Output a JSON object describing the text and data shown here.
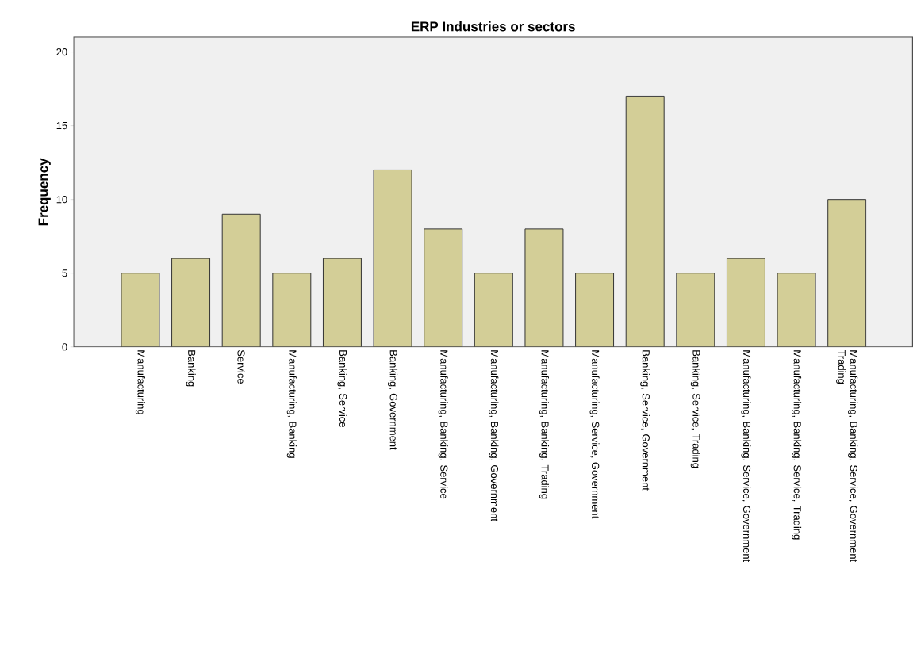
{
  "chart_data": {
    "type": "bar",
    "title": "ERP Industries or sectors",
    "ylabel": "Frequency",
    "categories": [
      "Manufacturing",
      "Banking",
      "Service",
      "Manufacturing, Banking",
      "Banking, Service",
      "Banking, Government",
      "Manufacturing, Banking, Service",
      "Manufacturing, Banking, Government",
      "Manufacturing, Banking, Trading",
      "Manufacturing, Service, Government",
      "Banking, Service, Government",
      "Banking, Service, Trading",
      "Manufacturing, Banking, Service, Government",
      "Manufacturing, Banking, Service, Trading",
      "Manufacturing, Banking, Service, Government Trading"
    ],
    "values": [
      5,
      6,
      9,
      5,
      6,
      12,
      8,
      5,
      8,
      5,
      17,
      5,
      6,
      5,
      10
    ],
    "color": "#d3ce97",
    "ylim": [
      0,
      21
    ],
    "yticks": [
      0,
      5,
      10,
      15,
      20
    ],
    "grid": false
  }
}
